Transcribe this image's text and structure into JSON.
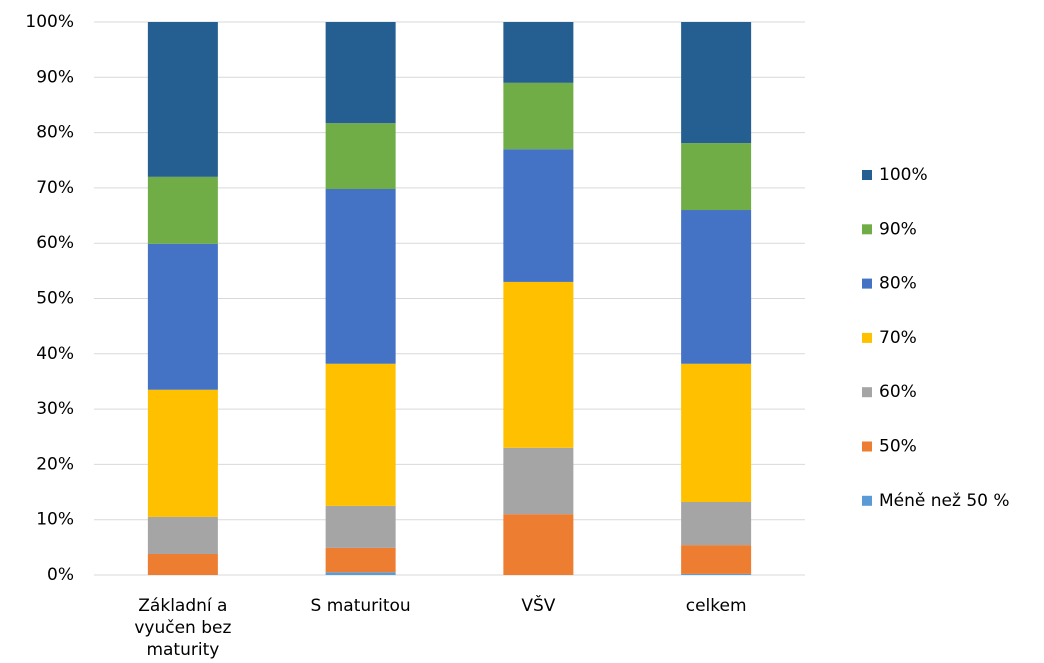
{
  "chart_data": {
    "type": "stacked_bar",
    "categories": [
      "Základní a vyučen bez maturity",
      "S maturitou",
      "VŠV",
      "celkem"
    ],
    "series": [
      {
        "name": "Méně než 50 %",
        "color": "#5b9bd5",
        "values": [
          0,
          0.5,
          0,
          0.2
        ]
      },
      {
        "name": "50%",
        "color": "#ed7d31",
        "values": [
          3.8,
          4.4,
          11,
          5.2
        ]
      },
      {
        "name": "60%",
        "color": "#a5a5a5",
        "values": [
          6.7,
          7.6,
          12,
          7.8
        ]
      },
      {
        "name": "70%",
        "color": "#ffc000",
        "values": [
          23,
          25.7,
          30,
          25
        ]
      },
      {
        "name": "80%",
        "color": "#4472c4",
        "values": [
          26.4,
          31.6,
          24,
          27.8
        ]
      },
      {
        "name": "90%",
        "color": "#70ad47",
        "values": [
          12.1,
          11.9,
          12,
          12.1
        ]
      },
      {
        "name": "100%",
        "color": "#255e91",
        "values": [
          28,
          18.3,
          11,
          21.9
        ]
      }
    ],
    "ylim": [
      0,
      100
    ],
    "yticks": [
      {
        "value": 0,
        "label": "0%"
      },
      {
        "value": 10,
        "label": "10%"
      },
      {
        "value": 20,
        "label": "20%"
      },
      {
        "value": 30,
        "label": "30%"
      },
      {
        "value": 40,
        "label": "40%"
      },
      {
        "value": 50,
        "label": "50%"
      },
      {
        "value": 60,
        "label": "60%"
      },
      {
        "value": 70,
        "label": "70%"
      },
      {
        "value": 80,
        "label": "80%"
      },
      {
        "value": 90,
        "label": "90%"
      },
      {
        "value": 100,
        "label": "100%"
      }
    ],
    "grid": true,
    "legend": "right"
  }
}
